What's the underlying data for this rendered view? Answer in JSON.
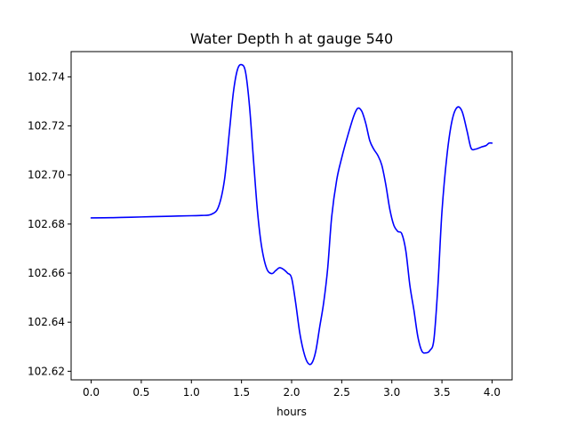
{
  "chart_data": {
    "type": "line",
    "title": "Water Depth h at gauge 540",
    "xlabel": "hours",
    "ylabel": "",
    "xlim": [
      -0.2,
      4.2
    ],
    "ylim": [
      102.6165,
      102.7503
    ],
    "xticks": [
      0.0,
      0.5,
      1.0,
      1.5,
      2.0,
      2.5,
      3.0,
      3.5,
      4.0
    ],
    "xtick_labels": [
      "0.0",
      "0.5",
      "1.0",
      "1.5",
      "2.0",
      "2.5",
      "3.0",
      "3.5",
      "4.0"
    ],
    "yticks": [
      102.62,
      102.64,
      102.66,
      102.68,
      102.7,
      102.72,
      102.74
    ],
    "ytick_labels": [
      "102.62",
      "102.64",
      "102.66",
      "102.68",
      "102.70",
      "102.72",
      "102.74"
    ],
    "grid": false,
    "legend": "none",
    "series": [
      {
        "color": "#0000ff",
        "x": [
          0.0,
          0.2,
          0.4,
          0.6,
          0.8,
          1.0,
          1.1,
          1.2,
          1.27,
          1.33,
          1.38,
          1.42,
          1.46,
          1.5,
          1.54,
          1.58,
          1.62,
          1.66,
          1.7,
          1.75,
          1.8,
          1.84,
          1.88,
          1.92,
          1.96,
          2.0,
          2.04,
          2.08,
          2.12,
          2.16,
          2.2,
          2.24,
          2.28,
          2.32,
          2.36,
          2.4,
          2.45,
          2.5,
          2.56,
          2.62,
          2.66,
          2.7,
          2.74,
          2.78,
          2.82,
          2.86,
          2.9,
          2.94,
          2.98,
          3.02,
          3.06,
          3.1,
          3.14,
          3.18,
          3.22,
          3.26,
          3.3,
          3.34,
          3.38,
          3.42,
          3.46,
          3.5,
          3.55,
          3.6,
          3.65,
          3.7,
          3.75,
          3.79,
          3.83,
          3.87,
          3.9,
          3.94,
          3.97,
          4.0
        ],
        "y": [
          102.6825,
          102.6826,
          102.6828,
          102.683,
          102.6832,
          102.6834,
          102.6835,
          102.684,
          102.687,
          102.698,
          102.718,
          102.734,
          102.743,
          102.745,
          102.742,
          102.728,
          102.706,
          102.685,
          102.671,
          102.662,
          102.6598,
          102.661,
          102.6622,
          102.6615,
          102.66,
          102.658,
          102.648,
          102.636,
          102.628,
          102.6235,
          102.6232,
          102.628,
          102.638,
          102.648,
          102.662,
          102.683,
          102.698,
          102.707,
          102.716,
          102.724,
          102.7272,
          102.726,
          102.721,
          102.714,
          102.7105,
          102.708,
          102.704,
          102.696,
          102.686,
          102.6795,
          102.677,
          102.676,
          102.669,
          102.655,
          102.645,
          102.634,
          102.6282,
          102.6275,
          102.6285,
          102.633,
          102.655,
          102.685,
          102.708,
          102.722,
          102.7275,
          102.726,
          102.718,
          102.711,
          102.7105,
          102.711,
          102.7115,
          102.712,
          102.713,
          102.713
        ]
      }
    ]
  }
}
